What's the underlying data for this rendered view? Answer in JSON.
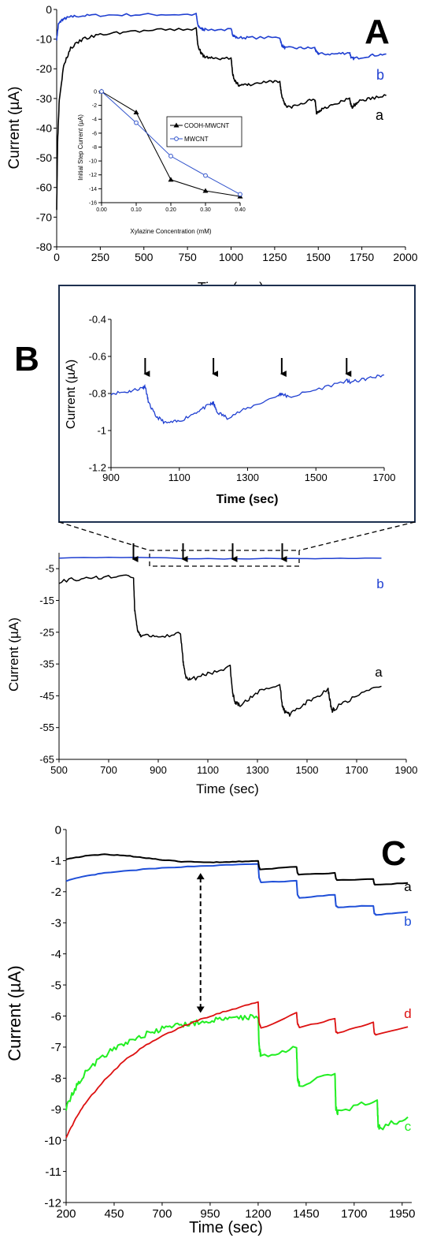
{
  "chart_data": [
    {
      "panel": "A",
      "type": "line",
      "xlabel": "Time (sec)",
      "ylabel": "Current (µA)",
      "xlim": [
        0,
        2000
      ],
      "ylim": [
        -80,
        0
      ],
      "x_ticks": [
        0,
        250,
        500,
        750,
        1000,
        1250,
        1500,
        1750,
        2000
      ],
      "y_ticks": [
        0,
        -10,
        -20,
        -30,
        -40,
        -50,
        -60,
        -70,
        -80
      ],
      "series": [
        {
          "name": "a",
          "color": "#000000",
          "x": [
            0,
            5,
            15,
            40,
            80,
            150,
            250,
            400,
            600,
            800,
            810,
            830,
            850,
            900,
            1000,
            1010,
            1030,
            1050,
            1100,
            1200,
            1280,
            1290,
            1310,
            1330,
            1400,
            1480,
            1490,
            1510,
            1530,
            1600,
            1680,
            1690,
            1710,
            1730,
            1800,
            1890
          ],
          "y": [
            -67,
            -45,
            -30,
            -19,
            -13,
            -10,
            -8.5,
            -7.5,
            -7,
            -6.5,
            -12,
            -15,
            -16,
            -16.5,
            -16.5,
            -22,
            -25,
            -25.5,
            -25.5,
            -24.5,
            -24.5,
            -29,
            -32,
            -33,
            -32,
            -30,
            -35,
            -34,
            -33,
            -32,
            -30,
            -33,
            -32,
            -31,
            -30,
            -29
          ]
        },
        {
          "name": "b",
          "color": "#1f3fd1",
          "x": [
            0,
            10,
            30,
            60,
            100,
            200,
            400,
            600,
            800,
            810,
            830,
            850,
            1000,
            1010,
            1030,
            1100,
            1280,
            1290,
            1310,
            1400,
            1480,
            1490,
            1510,
            1600,
            1680,
            1690,
            1710,
            1800,
            1890
          ],
          "y": [
            -10,
            -5,
            -3.5,
            -2.8,
            -2.3,
            -2,
            -1.8,
            -1.7,
            -1.7,
            -5.5,
            -6.5,
            -6.8,
            -6.8,
            -8.5,
            -9.5,
            -9.5,
            -9.5,
            -12,
            -13,
            -13,
            -13,
            -14.5,
            -15,
            -15,
            -14.5,
            -16.5,
            -16.5,
            -15.5,
            -15
          ]
        }
      ],
      "series_labels": [
        "a",
        "b"
      ],
      "inset": {
        "type": "line",
        "xlabel": "Xylazine Concentration (mM)",
        "ylabel": "Initial Step Current (µA)",
        "xlim": [
          0,
          0.4
        ],
        "ylim": [
          -16,
          0
        ],
        "x_ticks": [
          "0.00",
          "0.10",
          "0.20",
          "0.30",
          "0.40"
        ],
        "y_ticks": [
          "0",
          "-2",
          "-4",
          "-6",
          "-8",
          "-10",
          "-12",
          "-14",
          "-16"
        ],
        "legend_position": "right",
        "series": [
          {
            "name": "COOH-MWCNT",
            "color": "#000000",
            "marker": "triangle",
            "x": [
              0,
              0.1,
              0.2,
              0.3,
              0.4
            ],
            "y": [
              0,
              -3,
              -12.7,
              -14.3,
              -15.1
            ]
          },
          {
            "name": "MWCNT",
            "color": "#3355cc",
            "marker": "open-circle",
            "x": [
              0,
              0.1,
              0.2,
              0.3,
              0.4
            ],
            "y": [
              0,
              -4.5,
              -9.3,
              -12.1,
              -14.8
            ]
          }
        ]
      }
    },
    {
      "panel": "B",
      "type": "line",
      "xlabel": "Time (sec)",
      "ylabel": "Current (µA)",
      "xlim": [
        500,
        1900
      ],
      "ylim": [
        -65,
        5
      ],
      "x_ticks": [
        500,
        700,
        900,
        1100,
        1300,
        1500,
        1700,
        1900
      ],
      "y_ticks": [
        -5,
        -15,
        -25,
        -35,
        -45,
        -55,
        -65
      ],
      "series": [
        {
          "name": "a",
          "color": "#000000",
          "x": [
            500,
            600,
            700,
            800,
            805,
            815,
            830,
            900,
            990,
            1000,
            1010,
            1030,
            1100,
            1190,
            1200,
            1210,
            1230,
            1300,
            1390,
            1400,
            1410,
            1430,
            1500,
            1585,
            1600,
            1610,
            1700,
            1800
          ],
          "y": [
            -9,
            -8,
            -7.5,
            -7.5,
            -18,
            -24,
            -26,
            -26.5,
            -25.5,
            -34,
            -39,
            -40,
            -38,
            -36,
            -44,
            -47,
            -48,
            -44,
            -41,
            -48,
            -50,
            -51,
            -47,
            -43,
            -50,
            -49,
            -45,
            -42
          ]
        },
        {
          "name": "b",
          "color": "#1f3fd1",
          "x": [
            500,
            800,
            1000,
            1200,
            1400,
            1600,
            1800
          ],
          "y": [
            -1.6,
            -1.4,
            -1.8,
            -1.9,
            -1.8,
            -1.8,
            -1.7
          ]
        }
      ],
      "series_labels": [
        "a",
        "b"
      ],
      "arrows_x": [
        800,
        1000,
        1200,
        1400
      ],
      "inset": {
        "type": "line",
        "xlabel": "Time (sec)",
        "ylabel": "Current (µA)",
        "xlim": [
          900,
          1700
        ],
        "ylim": [
          -1.2,
          -0.4
        ],
        "x_ticks": [
          900,
          1100,
          1300,
          1500,
          1700
        ],
        "y_ticks": [
          "-0.4",
          "-0.6",
          "-0.8",
          "-1",
          "-1.2"
        ],
        "arrows_x": [
          1000,
          1200,
          1400,
          1590
        ],
        "series": [
          {
            "name": "b",
            "color": "#1f3fd1",
            "x": [
              900,
              950,
              990,
              1000,
              1010,
              1030,
              1060,
              1100,
              1150,
              1190,
              1200,
              1210,
              1240,
              1300,
              1390,
              1400,
              1420,
              1500,
              1590,
              1600,
              1650,
              1700
            ],
            "y": [
              -0.8,
              -0.79,
              -0.77,
              -0.76,
              -0.85,
              -0.92,
              -0.96,
              -0.95,
              -0.9,
              -0.86,
              -0.85,
              -0.9,
              -0.93,
              -0.88,
              -0.81,
              -0.8,
              -0.82,
              -0.78,
              -0.73,
              -0.74,
              -0.72,
              -0.7
            ]
          }
        ]
      }
    },
    {
      "panel": "C",
      "type": "line",
      "xlabel": "Time (sec)",
      "ylabel": "Current (µA)",
      "xlim": [
        200,
        2000
      ],
      "ylim": [
        -12,
        0
      ],
      "x_ticks": [
        200,
        450,
        700,
        950,
        1200,
        1450,
        1700,
        1950
      ],
      "y_ticks": [
        0,
        -1,
        -2,
        -3,
        -4,
        -5,
        -6,
        -7,
        -8,
        -9,
        -10,
        -11,
        -12
      ],
      "series": [
        {
          "name": "a",
          "color": "#000000",
          "x": [
            200,
            300,
            400,
            500,
            600,
            700,
            800,
            900,
            1000,
            1100,
            1200,
            1205,
            1210,
            1400,
            1405,
            1410,
            1600,
            1605,
            1610,
            1800,
            1805,
            1810,
            1980
          ],
          "y": [
            -0.95,
            -0.85,
            -0.8,
            -0.83,
            -0.9,
            -0.98,
            -1.03,
            -1.05,
            -1.05,
            -1.03,
            -1.0,
            -1.2,
            -1.28,
            -1.2,
            -1.4,
            -1.45,
            -1.4,
            -1.58,
            -1.62,
            -1.6,
            -1.75,
            -1.78,
            -1.72
          ]
        },
        {
          "name": "b",
          "color": "#1f4fd8",
          "x": [
            200,
            300,
            400,
            600,
            800,
            1000,
            1200,
            1205,
            1215,
            1400,
            1405,
            1415,
            1600,
            1605,
            1615,
            1800,
            1805,
            1815,
            1980
          ],
          "y": [
            -1.65,
            -1.5,
            -1.4,
            -1.28,
            -1.2,
            -1.15,
            -1.1,
            -1.55,
            -1.7,
            -1.65,
            -2.1,
            -2.2,
            -2.1,
            -2.45,
            -2.5,
            -2.45,
            -2.7,
            -2.75,
            -2.65
          ]
        },
        {
          "name": "c",
          "color": "#22ee22",
          "x": [
            200,
            250,
            300,
            400,
            500,
            600,
            700,
            800,
            900,
            1000,
            1100,
            1200,
            1205,
            1215,
            1400,
            1405,
            1415,
            1600,
            1605,
            1615,
            1820,
            1825,
            1835,
            1980
          ],
          "y": [
            -8.95,
            -8.3,
            -7.8,
            -7.25,
            -6.9,
            -6.62,
            -6.42,
            -6.28,
            -6.2,
            -6.12,
            -6.05,
            -6.0,
            -7.0,
            -7.3,
            -7.0,
            -8.0,
            -8.2,
            -7.9,
            -9.0,
            -9.1,
            -8.7,
            -9.5,
            -9.6,
            -9.25
          ]
        },
        {
          "name": "d",
          "color": "#dd1111",
          "x": [
            200,
            250,
            300,
            400,
            500,
            600,
            700,
            800,
            900,
            1000,
            1100,
            1200,
            1205,
            1215,
            1400,
            1405,
            1415,
            1600,
            1605,
            1615,
            1800,
            1805,
            1815,
            1980
          ],
          "y": [
            -9.9,
            -9.3,
            -8.8,
            -8.05,
            -7.45,
            -7.0,
            -6.65,
            -6.35,
            -6.1,
            -5.9,
            -5.72,
            -5.55,
            -6.2,
            -6.4,
            -5.9,
            -6.25,
            -6.35,
            -6.1,
            -6.5,
            -6.55,
            -6.2,
            -6.55,
            -6.6,
            -6.35
          ]
        }
      ],
      "series_labels": [
        "a",
        "b",
        "c",
        "d"
      ],
      "double_arrow_x": 900
    }
  ]
}
